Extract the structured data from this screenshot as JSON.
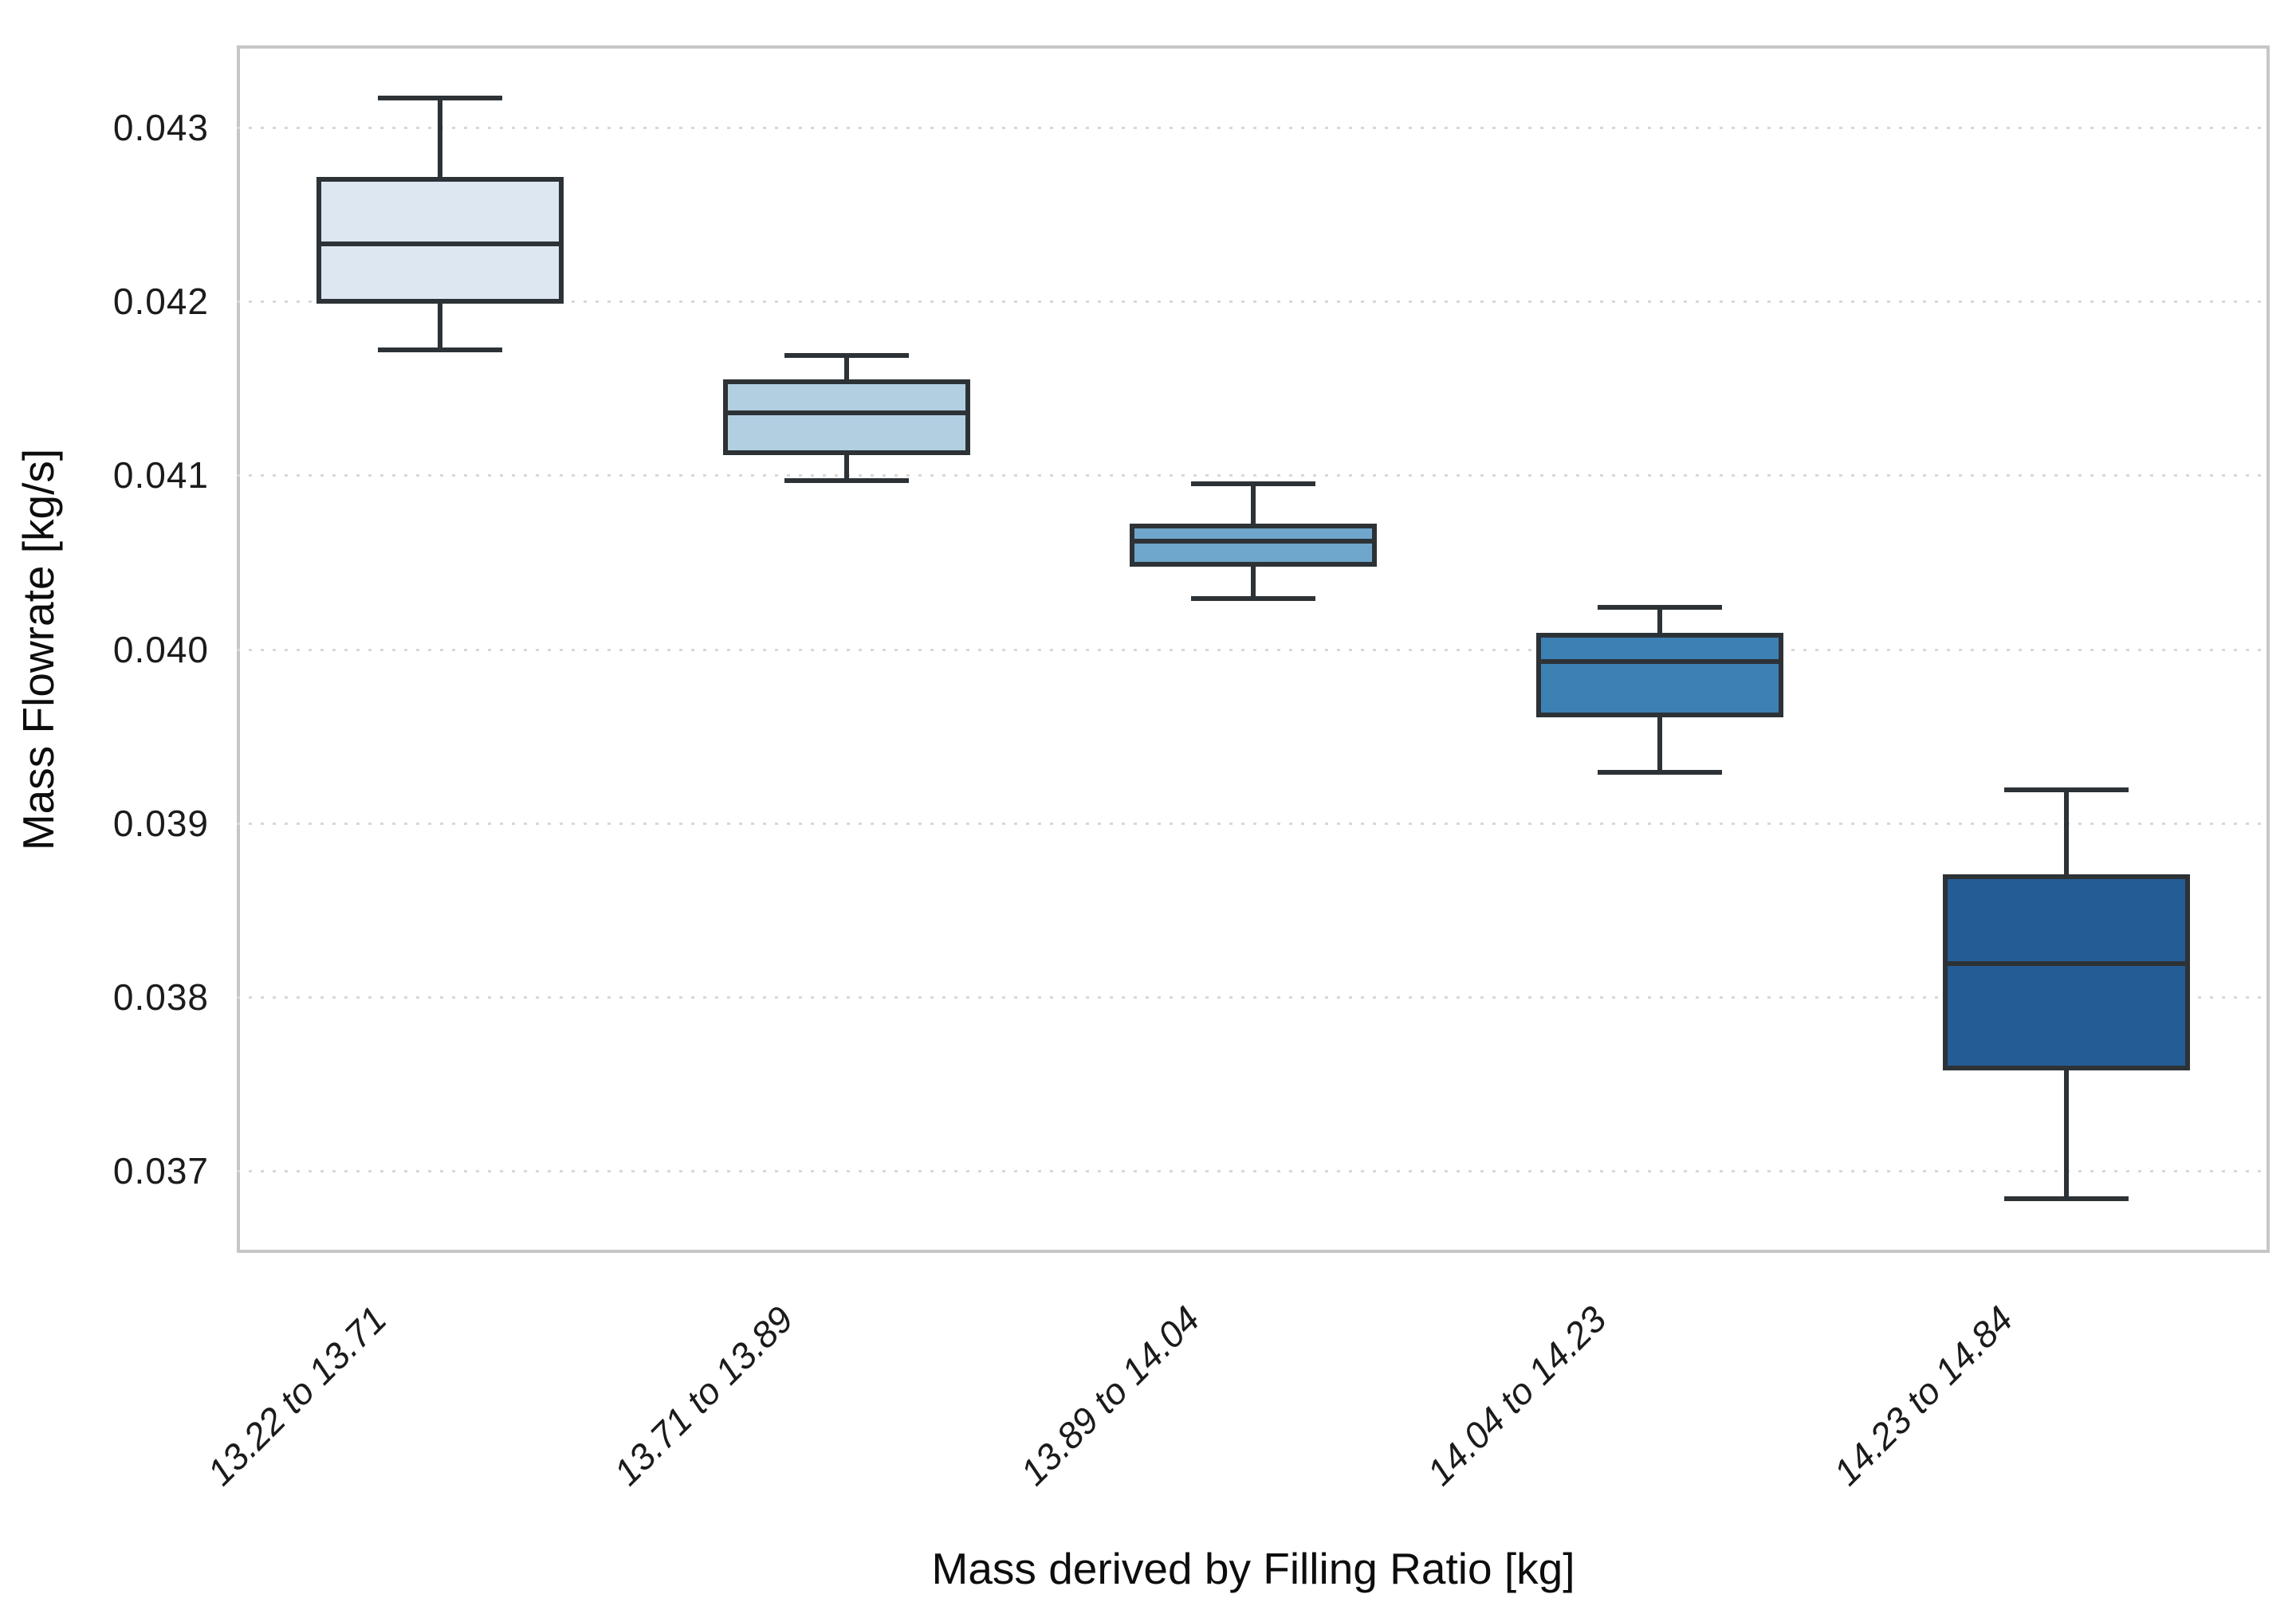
{
  "chart_data": {
    "type": "boxplot",
    "title": "",
    "xlabel": "Mass derived by Filling Ratio [kg]",
    "ylabel": "Mass Flowrate [kg/s]",
    "categories": [
      "13.22 to 13.71",
      "13.71 to 13.89",
      "13.89 to 14.04",
      "14.04 to 14.23",
      "14.23 to 14.84"
    ],
    "ylim": [
      0.036528,
      0.043472
    ],
    "yticks": [
      0.043,
      0.042,
      0.041,
      0.04,
      0.039,
      0.038,
      0.037
    ],
    "ytick_labels": [
      "0.043",
      "0.042",
      "0.041",
      "0.040",
      "0.039",
      "0.038",
      "0.037"
    ],
    "grid": "horizontal-dotted",
    "legend": "none",
    "series": [
      {
        "category": "13.22 to 13.71",
        "whisker_low": 0.04172,
        "q1": 0.042,
        "median": 0.04233,
        "q3": 0.0427,
        "whisker_high": 0.04317,
        "fill_color": "#dce7f2"
      },
      {
        "category": "13.71 to 13.89",
        "whisker_low": 0.04097,
        "q1": 0.04113,
        "median": 0.04136,
        "q3": 0.04154,
        "whisker_high": 0.04169,
        "fill_color": "#b2cfe2"
      },
      {
        "category": "13.89 to 14.04",
        "whisker_low": 0.04029,
        "q1": 0.04049,
        "median": 0.04062,
        "q3": 0.04071,
        "whisker_high": 0.04095,
        "fill_color": "#6fa6cb"
      },
      {
        "category": "14.04 to 14.23",
        "whisker_low": 0.03929,
        "q1": 0.03962,
        "median": 0.03993,
        "q3": 0.04008,
        "whisker_high": 0.04024,
        "fill_color": "#3d80b4"
      },
      {
        "category": "14.23 to 14.84",
        "whisker_low": 0.03684,
        "q1": 0.03759,
        "median": 0.03819,
        "q3": 0.03869,
        "whisker_high": 0.03919,
        "fill_color": "#245d95"
      }
    ],
    "colors": {
      "box_edge": "#2d3236",
      "whisker": "#2d3236",
      "median": "#2d3236",
      "grid": "#d8d8d8",
      "spine": "#c6c6c6",
      "background": "#ffffff"
    }
  }
}
